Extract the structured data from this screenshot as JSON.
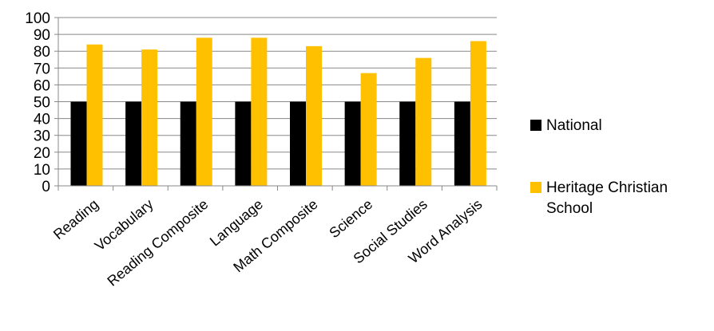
{
  "chart_data": {
    "type": "bar",
    "categories": [
      "Reading",
      "Vocabulary",
      "Reading Composite",
      "Language",
      "Math Composite",
      "Science",
      "Social Studies",
      "Word Analysis"
    ],
    "series": [
      {
        "name": "National",
        "color": "#000000",
        "values": [
          50,
          50,
          50,
          50,
          50,
          50,
          50,
          50
        ]
      },
      {
        "name": "Heritage Christian School",
        "name_lines": [
          "Heritage Christian",
          "School"
        ],
        "color": "#FFC000",
        "values": [
          84,
          81,
          88,
          88,
          83,
          67,
          76,
          86
        ]
      }
    ],
    "ylim": [
      0,
      100
    ],
    "yticks": [
      0,
      10,
      20,
      30,
      40,
      50,
      60,
      70,
      80,
      90,
      100
    ],
    "grid": true,
    "legend_position": "right",
    "title": "",
    "xlabel": "",
    "ylabel": ""
  }
}
